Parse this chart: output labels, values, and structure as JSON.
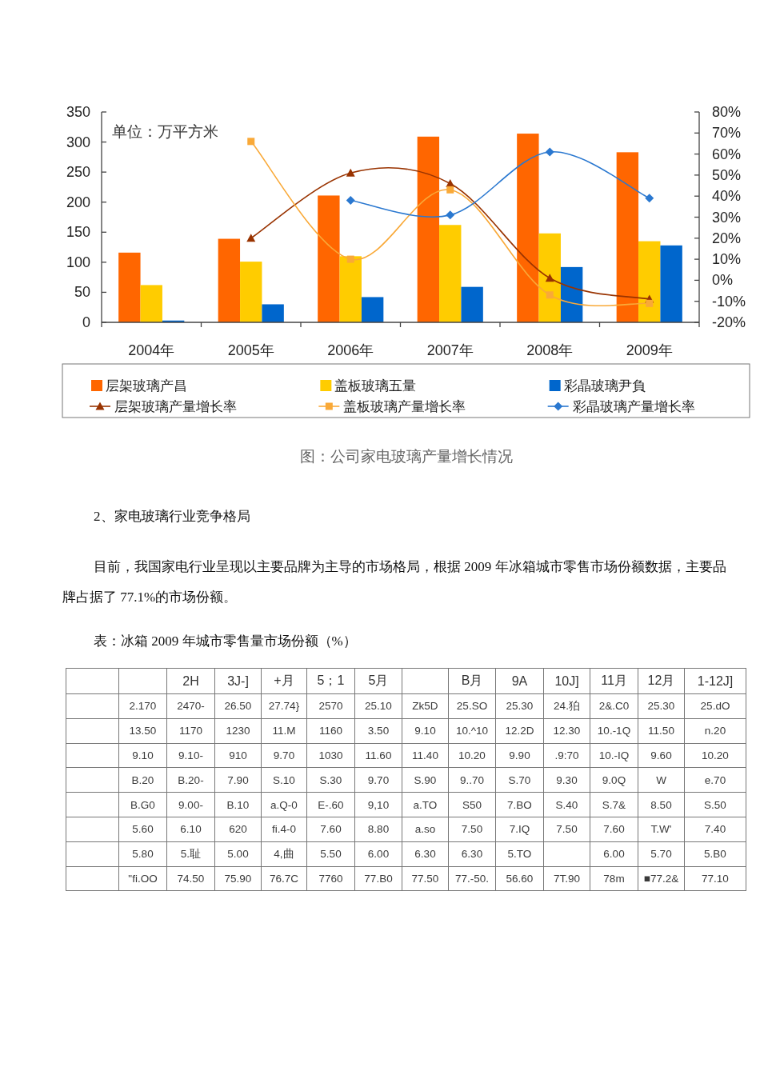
{
  "chart_data": [
    {
      "type": "bar",
      "title": "图：公司家电玻璃产量增长情况",
      "ylabel": "单位：万平方米",
      "categories": [
        "2004年",
        "2005年",
        "2006年",
        "2007年",
        "2008年",
        "2009年"
      ],
      "series": [
        {
          "name": "层架玻璃产昌",
          "type": "bar",
          "color": "#ff6600",
          "values": [
            116,
            139,
            211,
            309,
            314,
            283
          ]
        },
        {
          "name": "盖板玻璃五量",
          "type": "bar",
          "color": "#ffcc00",
          "values": [
            62,
            101,
            110,
            162,
            148,
            135
          ]
        },
        {
          "name": "彩晶玻璃尹負",
          "type": "bar",
          "color": "#0066cc",
          "values": [
            3,
            30,
            42,
            59,
            92,
            128
          ]
        },
        {
          "name": "层架玻璃产量增长率",
          "type": "line",
          "axis": "y2",
          "marker": "triangle",
          "color": "#993300",
          "values": [
            null,
            20,
            51,
            46,
            1,
            -9
          ]
        },
        {
          "name": "盖板玻璃产量增长率",
          "type": "line",
          "axis": "y2",
          "marker": "square",
          "color": "#f9a938",
          "values": [
            null,
            66,
            10,
            43,
            -7,
            -11
          ]
        },
        {
          "name": "彩晶玻璃产量增长率",
          "type": "line",
          "axis": "y2",
          "marker": "diamond",
          "color": "#2a78d0",
          "values": [
            null,
            null,
            38,
            31,
            61,
            39
          ]
        }
      ],
      "ylim": [
        0,
        350
      ],
      "yticks": [
        0,
        50,
        100,
        150,
        200,
        250,
        300,
        350
      ],
      "y2lim": [
        -20,
        80
      ],
      "y2ticks": [
        {
          "value": -20,
          "label": "-20%"
        },
        {
          "value": -10,
          "label": "-10%"
        },
        {
          "value": 0,
          "label": "0%"
        },
        {
          "value": 10,
          "label": "10%"
        },
        {
          "value": 20,
          "label": "20%"
        },
        {
          "value": 30,
          "label": "30%"
        },
        {
          "value": 40,
          "label": "40%"
        },
        {
          "value": 50,
          "label": "50%"
        },
        {
          "value": 60,
          "label": "60%"
        },
        {
          "value": 70,
          "label": "70%"
        },
        {
          "value": 80,
          "label": "80%"
        }
      ],
      "legend": "bottom"
    },
    {
      "type": "other",
      "title": "2、家电玻璃行业竞争格局",
      "annotations": [
        "目前，我国家电行业呈现以主要品牌为主导的市场格局，根据 2009 年冰箱城市零售市场份额数据，主要品牌占据了 77.1%的市场份额。"
      ]
    },
    {
      "type": "other",
      "title": "表：冰箱 2009 年城市零售量市场份额（%）",
      "categories": [
        null,
        "2H",
        "3J-]",
        "+月",
        "5；1",
        "5月",
        null,
        "B月",
        "9A",
        "10J]",
        "11月",
        "12月",
        "1-12J]"
      ],
      "y_categories": [
        null,
        null,
        null,
        null,
        null,
        null,
        null,
        null
      ],
      "cell_labels": [
        [
          "2.170",
          "2470-",
          "26.50",
          "27.74}",
          "2570",
          "25.10",
          "Zk5D",
          "25.SO",
          "25.30",
          "24.狛",
          "2&.C0",
          "25.30",
          "25.dO"
        ],
        [
          "13.50",
          "1170",
          "1230",
          "11.M",
          "1160",
          "3.50",
          "9.10",
          "10.^10",
          "12.2D",
          "12.30",
          "10.-1Q",
          "11.50",
          "n.20"
        ],
        [
          "9.10",
          "9.10-",
          "910",
          "9.70",
          "1030",
          "11.60",
          "11.40",
          "10.20",
          "9.90",
          ".9:70",
          "10.-IQ",
          "9.60",
          "10.20"
        ],
        [
          "B.20",
          "B.20-",
          "7.90",
          "S.10",
          "S.30",
          "9.70",
          "S.90",
          "9..70",
          "S.70",
          "9.30",
          "9.0Q",
          "W",
          "e.70"
        ],
        [
          "B.G0",
          "9.00-",
          "B.10",
          "a.Q-0",
          "E-.60",
          "9,10",
          "a.TO",
          "S50",
          "7.BO",
          "S.40",
          "S.7&",
          "8.50",
          "S.50"
        ],
        [
          "5.60",
          "6.10",
          "620",
          "fi.4-0",
          "7.60",
          "8.80",
          "a.so",
          "7.50",
          "7.IQ",
          "7.50",
          "7.60",
          "T.W'",
          "7.40"
        ],
        [
          "5.80",
          "5.耻",
          "5.00",
          "4,曲",
          "5.50",
          "6.00",
          "6.30",
          "6.30",
          "5.TO",
          null,
          "6.00",
          "5.70",
          "5.B0"
        ],
        [
          "\"fi.OO",
          "74.50",
          "75.90",
          "76.7C",
          "7760",
          "77.B0",
          "77.50",
          "77.-50.",
          "56.60",
          "7T.90",
          "78m",
          "■77.2&",
          "77.10"
        ]
      ]
    }
  ]
}
